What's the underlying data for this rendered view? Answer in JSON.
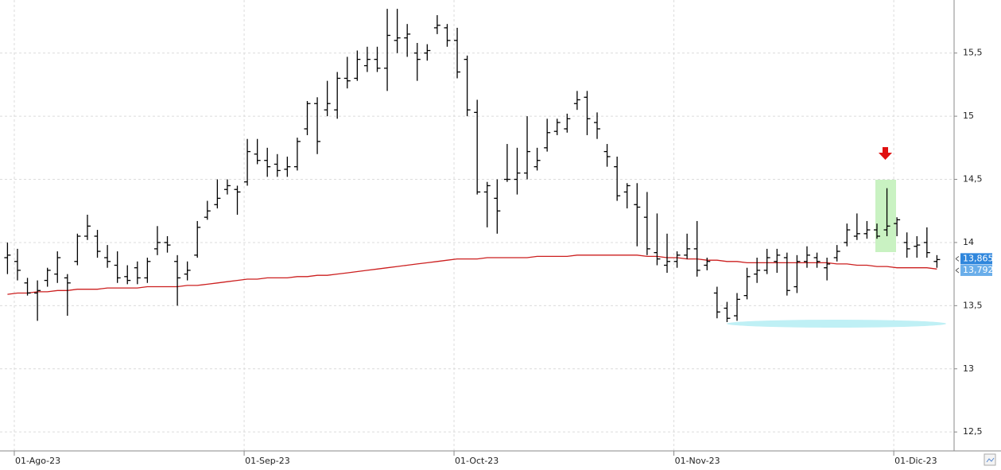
{
  "chart_data": {
    "type": "ohlc",
    "ylim": [
      12.35,
      15.92
    ],
    "yticks": [
      {
        "value": 12.5,
        "label": "12,5"
      },
      13,
      {
        "value": 13.5,
        "label": "13,5"
      },
      14,
      {
        "value": 14.5,
        "label": "14,5"
      },
      15,
      {
        "value": 15.5,
        "label": "15,5"
      }
    ],
    "grid": true,
    "color": "#000000",
    "categories": [
      null,
      "01-Ago-23",
      null,
      null,
      null,
      null,
      null,
      null,
      null,
      null,
      null,
      null,
      null,
      null,
      null,
      null,
      null,
      null,
      null,
      null,
      null,
      null,
      null,
      null,
      "01-Sep-23",
      null,
      null,
      null,
      null,
      null,
      null,
      null,
      null,
      null,
      null,
      null,
      null,
      null,
      null,
      null,
      null,
      null,
      null,
      null,
      null,
      "01-Oct-23",
      null,
      null,
      null,
      null,
      null,
      null,
      null,
      null,
      null,
      null,
      null,
      null,
      null,
      null,
      null,
      null,
      null,
      null,
      null,
      null,
      null,
      "01-Nov-23",
      null,
      null,
      null,
      null,
      null,
      null,
      null,
      null,
      null,
      null,
      null,
      null,
      null,
      null,
      null,
      null,
      null,
      null,
      null,
      null,
      null,
      "01-Dic-23",
      null,
      null,
      null,
      null
    ],
    "high": [
      14.0,
      13.95,
      13.72,
      13.7,
      13.8,
      13.93,
      13.75,
      14.07,
      14.22,
      14.1,
      13.98,
      13.93,
      13.82,
      13.85,
      13.88,
      14.13,
      14.05,
      13.9,
      13.85,
      14.17,
      14.33,
      14.5,
      14.5,
      14.45,
      14.82,
      14.82,
      14.75,
      14.7,
      14.68,
      14.83,
      15.12,
      15.15,
      15.28,
      15.35,
      15.47,
      15.52,
      15.55,
      15.55,
      15.85,
      15.85,
      15.73,
      15.58,
      15.57,
      15.8,
      15.73,
      15.7,
      15.48,
      15.13,
      14.48,
      14.5,
      14.78,
      14.75,
      15.0,
      14.75,
      14.98,
      14.98,
      15.02,
      15.2,
      15.2,
      15.03,
      14.78,
      14.68,
      14.47,
      14.47,
      14.4,
      14.23,
      14.07,
      13.93,
      14.07,
      14.17,
      13.88,
      13.65,
      13.53,
      13.6,
      13.8,
      13.88,
      13.95,
      13.95,
      13.92,
      13.9,
      13.97,
      13.92,
      13.88,
      13.98,
      14.15,
      14.23,
      14.17,
      14.15,
      14.43,
      14.2,
      14.08,
      14.05,
      14.12,
      13.9
    ],
    "low": [
      13.75,
      13.7,
      13.58,
      13.38,
      13.65,
      13.68,
      13.42,
      13.82,
      14.02,
      13.88,
      13.8,
      13.68,
      13.67,
      13.67,
      13.68,
      13.9,
      13.92,
      13.5,
      13.7,
      13.88,
      14.18,
      14.27,
      14.38,
      14.22,
      14.45,
      14.62,
      14.52,
      14.52,
      14.52,
      14.57,
      14.85,
      14.7,
      15.0,
      14.98,
      15.22,
      15.28,
      15.35,
      15.35,
      15.2,
      15.5,
      15.47,
      15.28,
      15.44,
      15.65,
      15.55,
      15.3,
      15.0,
      14.38,
      14.12,
      14.07,
      14.48,
      14.38,
      14.5,
      14.57,
      14.72,
      14.85,
      14.87,
      15.05,
      14.85,
      14.82,
      14.6,
      14.33,
      14.27,
      13.97,
      13.9,
      13.82,
      13.76,
      13.8,
      13.87,
      13.73,
      13.78,
      13.4,
      13.37,
      13.38,
      13.55,
      13.68,
      13.75,
      13.76,
      13.58,
      13.6,
      13.8,
      13.8,
      13.7,
      13.85,
      13.97,
      14.02,
      14.03,
      14.03,
      14.05,
      14.05,
      13.88,
      13.88,
      13.88,
      13.8
    ],
    "open": [
      13.88,
      13.85,
      13.68,
      13.6,
      13.7,
      13.75,
      13.72,
      13.85,
      14.05,
      14.05,
      13.88,
      13.82,
      13.73,
      13.8,
      13.72,
      13.95,
      14.0,
      13.85,
      13.75,
      13.9,
      14.2,
      14.3,
      14.42,
      14.42,
      14.48,
      14.7,
      14.65,
      14.62,
      14.58,
      14.6,
      14.9,
      15.1,
      15.05,
      15.05,
      15.3,
      15.3,
      15.4,
      15.45,
      15.38,
      15.6,
      15.62,
      15.5,
      15.5,
      15.7,
      15.7,
      15.6,
      15.45,
      15.03,
      14.4,
      14.35,
      14.5,
      14.5,
      14.55,
      14.6,
      14.75,
      14.88,
      14.9,
      15.1,
      15.15,
      14.95,
      14.72,
      14.6,
      14.4,
      14.3,
      14.2,
      13.92,
      13.82,
      13.85,
      13.9,
      13.95,
      13.82,
      13.6,
      13.48,
      13.42,
      13.58,
      13.75,
      13.78,
      13.85,
      13.88,
      13.65,
      13.85,
      13.88,
      13.8,
      13.88,
      14.0,
      14.05,
      14.07,
      14.1,
      14.1,
      14.15,
      14.0,
      13.97,
      14.0,
      13.85
    ],
    "close": [
      13.9,
      13.78,
      13.6,
      13.62,
      13.78,
      13.88,
      13.68,
      14.05,
      14.13,
      13.93,
      13.85,
      13.72,
      13.7,
      13.72,
      13.85,
      14.0,
      13.98,
      13.72,
      13.78,
      14.12,
      14.25,
      14.35,
      14.45,
      14.4,
      14.72,
      14.65,
      14.6,
      14.57,
      14.6,
      14.8,
      15.1,
      14.8,
      15.1,
      15.3,
      15.28,
      15.45,
      15.45,
      15.38,
      15.64,
      15.62,
      15.65,
      15.45,
      15.52,
      15.72,
      15.6,
      15.35,
      15.05,
      14.4,
      14.45,
      14.25,
      14.5,
      14.55,
      14.72,
      14.65,
      14.87,
      14.95,
      14.98,
      15.13,
      14.98,
      14.9,
      14.68,
      14.37,
      14.45,
      14.28,
      13.95,
      13.87,
      13.85,
      13.9,
      13.95,
      13.78,
      13.85,
      13.45,
      13.4,
      13.55,
      13.73,
      13.78,
      13.88,
      13.9,
      13.62,
      13.85,
      13.9,
      13.85,
      13.83,
      13.93,
      14.1,
      14.07,
      14.1,
      14.05,
      14.13,
      14.18,
      13.95,
      13.98,
      13.92,
      13.865
    ],
    "moving_average": {
      "color": "#cc1f1f",
      "values": [
        13.59,
        13.6,
        13.6,
        13.61,
        13.61,
        13.62,
        13.62,
        13.63,
        13.63,
        13.63,
        13.64,
        13.64,
        13.64,
        13.64,
        13.65,
        13.65,
        13.65,
        13.65,
        13.66,
        13.66,
        13.67,
        13.68,
        13.69,
        13.7,
        13.71,
        13.71,
        13.72,
        13.72,
        13.72,
        13.73,
        13.73,
        13.74,
        13.74,
        13.75,
        13.76,
        13.77,
        13.78,
        13.79,
        13.8,
        13.81,
        13.82,
        13.83,
        13.84,
        13.85,
        13.86,
        13.87,
        13.87,
        13.87,
        13.88,
        13.88,
        13.88,
        13.88,
        13.88,
        13.89,
        13.89,
        13.89,
        13.89,
        13.9,
        13.9,
        13.9,
        13.9,
        13.9,
        13.9,
        13.9,
        13.89,
        13.89,
        13.88,
        13.88,
        13.87,
        13.87,
        13.86,
        13.86,
        13.85,
        13.85,
        13.84,
        13.84,
        13.84,
        13.84,
        13.84,
        13.84,
        13.84,
        13.84,
        13.84,
        13.83,
        13.83,
        13.82,
        13.82,
        13.81,
        13.81,
        13.8,
        13.8,
        13.8,
        13.8,
        13.79
      ]
    },
    "price_labels": [
      {
        "value": 13.865,
        "label": "13,865",
        "color": "#2f86dc"
      },
      {
        "value": 13.792,
        "label": "13,792",
        "color": "#6aaeea"
      }
    ]
  }
}
